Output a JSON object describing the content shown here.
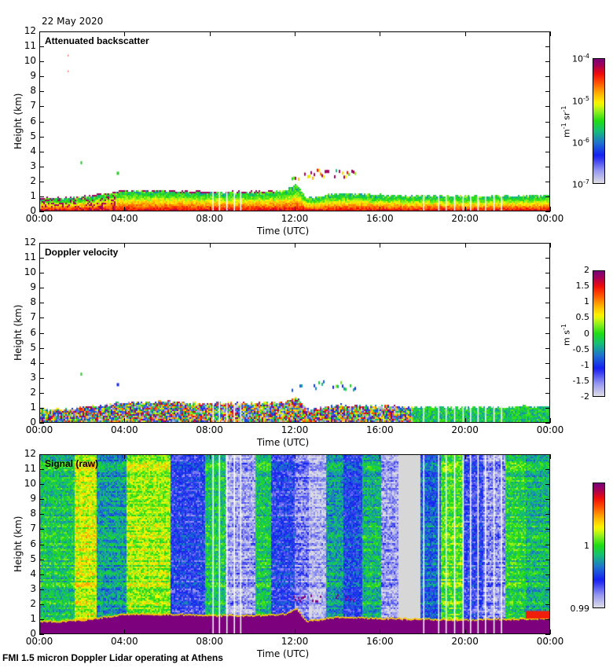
{
  "date_label": "22 May 2020",
  "footer": "FMI 1.5 micron Doppler Lidar operating at Athens",
  "chart_data": [
    {
      "type": "heatmap",
      "title": "Attenuated backscatter",
      "xlabel": "Time (UTC)",
      "ylabel": "Height (km)",
      "xticks": [
        "00:00",
        "04:00",
        "08:00",
        "12:00",
        "16:00",
        "20:00",
        "00:00"
      ],
      "yticks": [
        "0",
        "1",
        "2",
        "3",
        "4",
        "5",
        "6",
        "7",
        "8",
        "9",
        "10",
        "11",
        "12"
      ],
      "xlim_hours": [
        0,
        24
      ],
      "ylim_km": [
        0,
        12
      ],
      "colorbar": {
        "scale": "log",
        "range": [
          1e-07,
          0.0001
        ],
        "ticks": [
          "10^-7",
          "10^-6",
          "10^-5",
          "10^-4"
        ],
        "unit": "m-1 sr-1"
      },
      "features": {
        "boundary_layer_top_km": [
          [
            0,
            0.9
          ],
          [
            1,
            0.9
          ],
          [
            2,
            1.0
          ],
          [
            3,
            1.2
          ],
          [
            4,
            1.4
          ],
          [
            6,
            1.4
          ],
          [
            8,
            1.3
          ],
          [
            10,
            1.3
          ],
          [
            11.5,
            1.4
          ],
          [
            12,
            1.8
          ],
          [
            12.5,
            0.9
          ],
          [
            14,
            1.2
          ],
          [
            16,
            1.1
          ],
          [
            20,
            1.0
          ],
          [
            24,
            1.1
          ]
        ],
        "elevated_layer": {
          "time_hours": [
            11.7,
            14.8
          ],
          "height_km": [
            2.2,
            2.9
          ]
        }
      }
    },
    {
      "type": "heatmap",
      "title": "Doppler velocity",
      "xlabel": "Time (UTC)",
      "ylabel": "Height (km)",
      "xticks": [
        "00:00",
        "04:00",
        "08:00",
        "12:00",
        "16:00",
        "20:00",
        "00:00"
      ],
      "yticks": [
        "0",
        "1",
        "2",
        "3",
        "4",
        "5",
        "6",
        "7",
        "8",
        "9",
        "10",
        "11",
        "12"
      ],
      "xlim_hours": [
        0,
        24
      ],
      "ylim_km": [
        0,
        12
      ],
      "colorbar": {
        "scale": "linear",
        "range": [
          -2,
          2
        ],
        "ticks": [
          "-2",
          "-1.5",
          "-1",
          "-0.5",
          "0",
          "0.5",
          "1",
          "1.5",
          "2"
        ],
        "unit": "m s-1"
      }
    },
    {
      "type": "heatmap",
      "title": "Signal (raw)",
      "xlabel": "Time (UTC)",
      "ylabel": "Height (km)",
      "xticks": [
        "00:00",
        "04:00",
        "08:00",
        "12:00",
        "16:00",
        "20:00",
        "00:00"
      ],
      "yticks": [
        "0",
        "1",
        "2",
        "3",
        "4",
        "5",
        "6",
        "7",
        "8",
        "9",
        "10",
        "11",
        "12"
      ],
      "xlim_hours": [
        0,
        24
      ],
      "ylim_km": [
        0,
        12
      ],
      "colorbar": {
        "scale": "linear",
        "range": [
          0.99,
          1.01
        ],
        "ticks": [
          "0.99",
          "1"
        ],
        "unit": ""
      },
      "features": {
        "column_bands": [
          {
            "from": 0,
            "to": 1.6,
            "level": 0.45
          },
          {
            "from": 1.6,
            "to": 2.6,
            "level": 0.62
          },
          {
            "from": 2.6,
            "to": 4.0,
            "level": 0.38
          },
          {
            "from": 4.0,
            "to": 6.1,
            "level": 0.58
          },
          {
            "from": 6.1,
            "to": 7.7,
            "level": 0.22
          },
          {
            "from": 7.7,
            "to": 8.7,
            "level": 0.45
          },
          {
            "from": 8.7,
            "to": 10.1,
            "level": 0.08
          },
          {
            "from": 10.1,
            "to": 10.8,
            "level": 0.45
          },
          {
            "from": 10.8,
            "to": 11.9,
            "level": 0.22
          },
          {
            "from": 11.9,
            "to": 12.6,
            "level": 0.12
          },
          {
            "from": 12.6,
            "to": 13.4,
            "level": 0.05
          },
          {
            "from": 13.4,
            "to": 14.2,
            "level": 0.38
          },
          {
            "from": 14.2,
            "to": 15.1,
            "level": 0.25
          },
          {
            "from": 15.1,
            "to": 16.0,
            "level": 0.42
          },
          {
            "from": 16.0,
            "to": 16.8,
            "level": 0.08
          },
          {
            "from": 16.8,
            "to": 17.8,
            "level": -1
          },
          {
            "from": 17.8,
            "to": 18.8,
            "level": 0.3
          },
          {
            "from": 18.8,
            "to": 19.8,
            "level": 0.52
          },
          {
            "from": 19.8,
            "to": 20.8,
            "level": 0.2
          },
          {
            "from": 20.8,
            "to": 21.8,
            "level": 0.1
          },
          {
            "from": 21.8,
            "to": 22.8,
            "level": 0.48
          },
          {
            "from": 22.8,
            "to": 24,
            "level": 0.42
          }
        ],
        "lowest_km_saturated_purple": 0.9
      }
    }
  ]
}
